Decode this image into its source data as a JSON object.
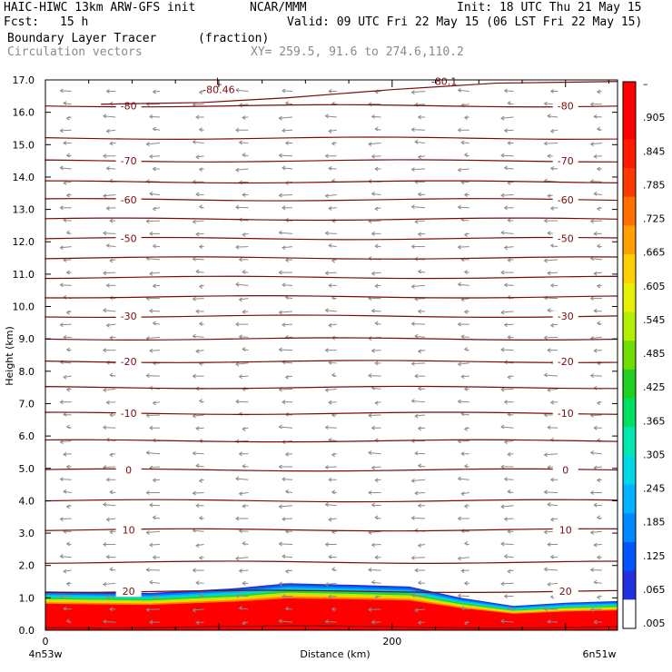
{
  "header": {
    "model": "HAIC-HIWC 13km ARW-GFS init",
    "org": "NCAR/MMM",
    "init": "Init: 18 UTC Thu 21 May 15",
    "fcst_label": "Fcst:",
    "fcst_value": "15 h",
    "valid": "Valid: 09 UTC Fri 22 May 15 (06 LST Fri 22 May 15)",
    "field1": "Boundary Layer Tracer",
    "field1_units": "(fraction)",
    "field2": "Circulation vectors",
    "xy": "XY= 259.5, 91.6 to 274.6,110.2"
  },
  "chart_data": {
    "type": "heatmap",
    "xlabel": "Distance (km)",
    "ylabel": "Height (km)",
    "xlim": [
      0,
      330
    ],
    "ylim": [
      0,
      17
    ],
    "y_ticks": [
      "0.0",
      "1.0",
      "2.0",
      "3.0",
      "4.0",
      "5.0",
      "6.0",
      "7.0",
      "8.0",
      "9.0",
      "10.0",
      "11.0",
      "12.0",
      "13.0",
      "14.0",
      "15.0",
      "16.0",
      "17.0"
    ],
    "x_ticks": [
      {
        "v": 0,
        "label": "0"
      },
      {
        "v": 200,
        "label": "200"
      }
    ],
    "x_end_labels": {
      "left": "4n53w",
      "right": "6n51w"
    },
    "colorbar": {
      "labels": [
        ".005",
        ".065",
        ".125",
        ".185",
        ".245",
        ".305",
        ".365",
        ".425",
        ".485",
        ".545",
        ".605",
        ".665",
        ".725",
        ".785",
        ".845",
        ".905",
        "–"
      ],
      "colors": [
        "#ffffff",
        "#2233dd",
        "#0055ff",
        "#0088ff",
        "#00b2ff",
        "#00d8e6",
        "#00e8b0",
        "#00e060",
        "#20d020",
        "#70dd00",
        "#b4ee00",
        "#e6f000",
        "#ffd000",
        "#ffa000",
        "#ff7000",
        "#ff3a00",
        "#ff1a00",
        "#ff0000",
        "#ff0000"
      ]
    },
    "isotherms": [
      {
        "y": 0.1,
        "label": null
      },
      {
        "y": 1.2,
        "label": "20"
      },
      {
        "y": 2.1,
        "label": null
      },
      {
        "y": 3.1,
        "label": "10"
      },
      {
        "y": 4.0,
        "label": null
      },
      {
        "y": 4.95,
        "label": "0"
      },
      {
        "y": 5.85,
        "label": null
      },
      {
        "y": 6.7,
        "label": "-10"
      },
      {
        "y": 7.5,
        "label": null
      },
      {
        "y": 8.3,
        "label": "-20"
      },
      {
        "y": 9.0,
        "label": null
      },
      {
        "y": 9.7,
        "label": "-30"
      },
      {
        "y": 10.3,
        "label": null
      },
      {
        "y": 10.9,
        "label": null
      },
      {
        "y": 11.5,
        "label": null
      },
      {
        "y": 12.1,
        "label": "-50"
      },
      {
        "y": 12.7,
        "label": null
      },
      {
        "y": 13.3,
        "label": "-60"
      },
      {
        "y": 13.85,
        "label": null
      },
      {
        "y": 14.5,
        "label": "-70"
      },
      {
        "y": 15.2,
        "label": null
      },
      {
        "y": 16.2,
        "label": "-80"
      }
    ],
    "tropopause_label": "-80.46",
    "low_marker": "L",
    "top_label": "-80.1",
    "tracer_top_km": [
      {
        "x": 0,
        "y": 1.2
      },
      {
        "x": 60,
        "y": 1.15
      },
      {
        "x": 110,
        "y": 1.3
      },
      {
        "x": 140,
        "y": 1.45
      },
      {
        "x": 180,
        "y": 1.4
      },
      {
        "x": 210,
        "y": 1.35
      },
      {
        "x": 240,
        "y": 1.0
      },
      {
        "x": 270,
        "y": 0.75
      },
      {
        "x": 300,
        "y": 0.85
      },
      {
        "x": 330,
        "y": 0.9
      }
    ],
    "wind_note": "mostly easterly (leftward) flow throughout column"
  }
}
